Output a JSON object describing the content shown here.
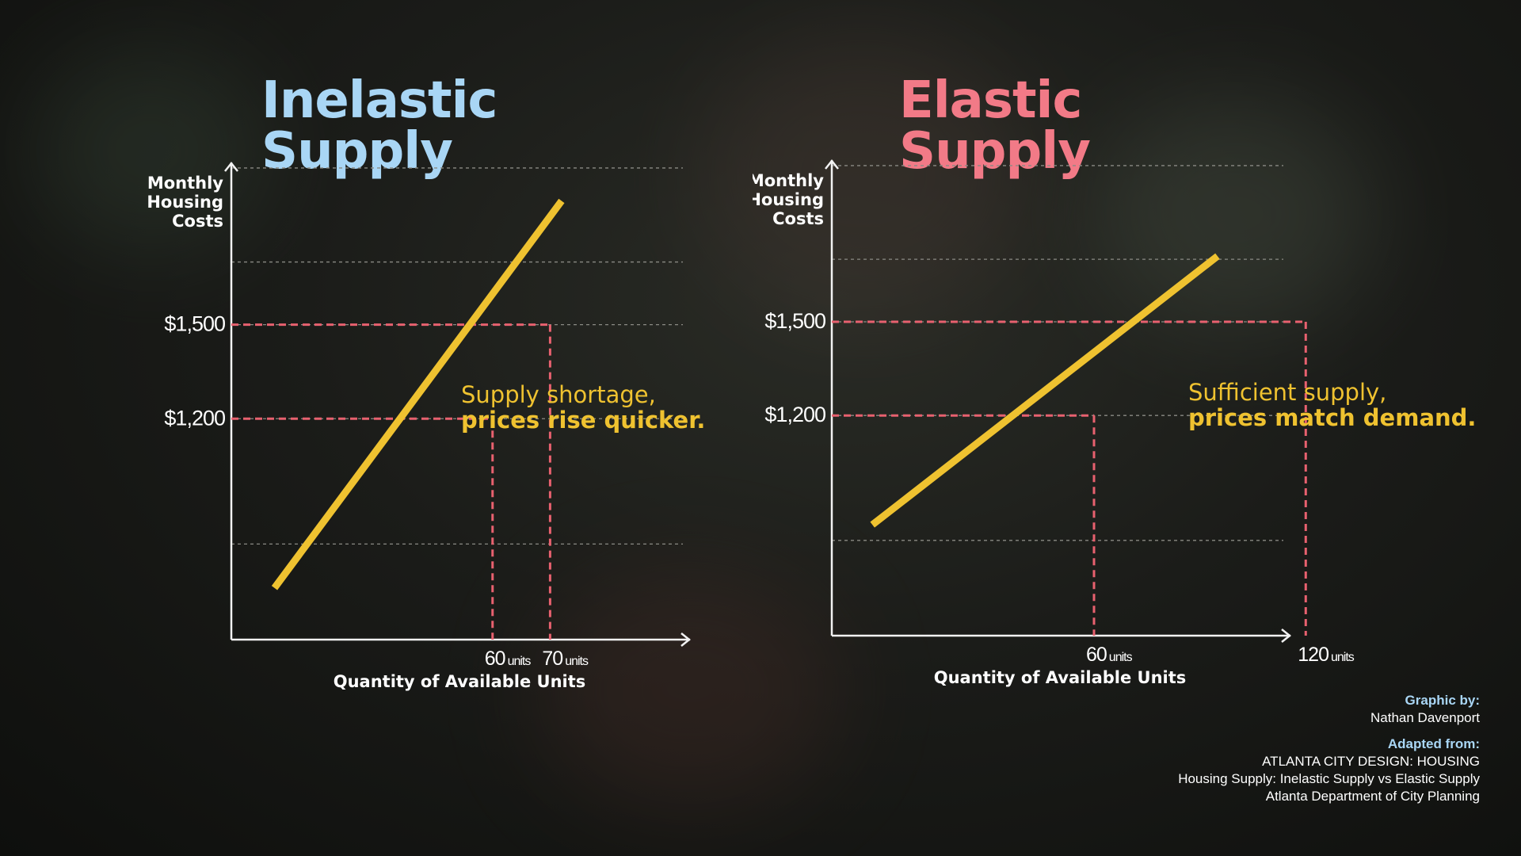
{
  "titles": {
    "left": "Inelastic Supply",
    "right": "Elastic Supply"
  },
  "colors": {
    "inelastic_title": "#a9d6f5",
    "elastic_title": "#f27a87",
    "supply_line": "#efc230",
    "guide_lines": "#e8616f",
    "annotation": "#efc230"
  },
  "chart_data": [
    {
      "type": "line",
      "title": "Inelastic Supply",
      "ylabel": [
        "Monthly",
        "Housing",
        "Costs"
      ],
      "xlabel": "Quantity of Available Units",
      "xlim": [
        14.6,
        93.9
      ],
      "ylim": [
        495,
        2010
      ],
      "y_ticks": [
        {
          "value": 1200,
          "label": "$1,200"
        },
        {
          "value": 1500,
          "label": "$1,500"
        }
      ],
      "x_ticks": [
        {
          "value": 60,
          "num": "60",
          "unit": "units"
        },
        {
          "value": 70,
          "num": "70",
          "unit": "units"
        }
      ],
      "grid_y": [
        800,
        1500,
        1200,
        1700,
        2000
      ],
      "series": [
        {
          "x": [
            22.1,
            72.0
          ],
          "y": [
            660,
            1895
          ]
        }
      ],
      "markers": [
        {
          "x": 60,
          "y": 1200
        },
        {
          "x": 70,
          "y": 1500
        }
      ],
      "annotation": {
        "line1": "Supply shortage,",
        "line2": "prices rise quicker."
      }
    },
    {
      "type": "line",
      "title": "Elastic Supply",
      "ylabel": [
        "Monthly",
        "Housing",
        "Costs"
      ],
      "xlabel": "Quantity of Available Units",
      "xlim": [
        -14.3,
        115.0
      ],
      "ylim": [
        495,
        2010
      ],
      "y_ticks": [
        {
          "value": 1200,
          "label": "$1,200"
        },
        {
          "value": 1500,
          "label": "$1,500"
        }
      ],
      "x_ticks": [
        {
          "value": 60,
          "num": "60",
          "unit": "units"
        },
        {
          "value": 120,
          "num": "120",
          "unit": "units"
        }
      ],
      "grid_y": [
        800,
        1500,
        1200,
        1700,
        2000
      ],
      "series": [
        {
          "x": [
            -2.8,
            95.0
          ],
          "y": [
            850,
            1710
          ]
        }
      ],
      "markers": [
        {
          "x": 60,
          "y": 1200
        },
        {
          "x": 120,
          "y": 1500
        }
      ],
      "annotation": {
        "line1": "Sufficient supply,",
        "line2": "prices match demand."
      }
    }
  ],
  "credits": {
    "graphic_by_label": "Graphic by:",
    "graphic_by_name": "Nathan Davenport",
    "adapted_label": "Adapted from:",
    "adapted_line1": "ATLANTA CITY DESIGN: HOUSING",
    "adapted_line2": "Housing Supply: Inelastic Supply vs Elastic Supply",
    "adapted_line3": "Atlanta Department of City Planning"
  }
}
